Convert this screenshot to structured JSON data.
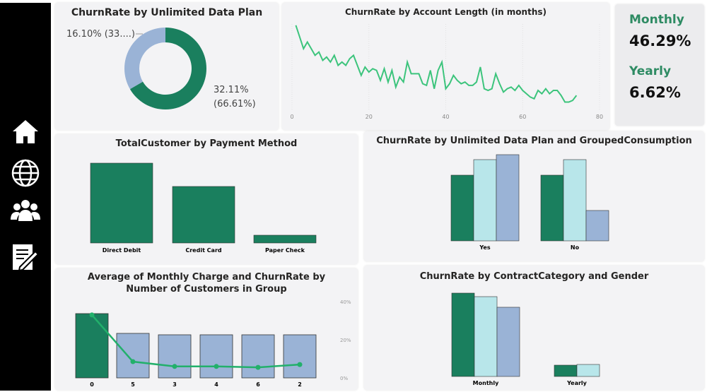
{
  "colors": {
    "green": "#1a7f5e",
    "line": "#3cc47c",
    "cyan": "#b8e6ea",
    "blue": "#9ab3d6"
  },
  "nav": [
    {
      "icon": "home-icon"
    },
    {
      "icon": "globe-icon"
    },
    {
      "icon": "users-icon"
    },
    {
      "icon": "document-edit-icon"
    }
  ],
  "kpi": {
    "monthly_label": "Monthly",
    "monthly_value": "46.29%",
    "yearly_label": "Yearly",
    "yearly_value": "6.62%"
  },
  "chart_data": [
    {
      "type": "pie",
      "title": "ChurnRate by Unlimited Data Plan",
      "slices": [
        {
          "value": 66.61,
          "label": "32.11%",
          "sublabel": "(66.61%)",
          "color": "#1a7f5e"
        },
        {
          "value": 33.39,
          "label": "16.10% (33....)",
          "color": "#9ab3d6"
        }
      ]
    },
    {
      "type": "line",
      "title": "ChurnRate by Account Length (in months)",
      "xlim": [
        0,
        80
      ],
      "xticks": [
        "0",
        "20",
        "40",
        "60",
        "80"
      ],
      "grid": "vertical",
      "x": [
        1,
        2,
        3,
        4,
        5,
        6,
        7,
        8,
        9,
        10,
        11,
        12,
        13,
        14,
        15,
        16,
        17,
        18,
        19,
        20,
        21,
        22,
        23,
        24,
        25,
        26,
        27,
        28,
        29,
        30,
        31,
        32,
        33,
        34,
        35,
        36,
        37,
        38,
        39,
        40,
        41,
        42,
        43,
        44,
        45,
        46,
        47,
        48,
        49,
        50,
        51,
        52,
        53,
        54,
        55,
        56,
        57,
        58,
        59,
        60,
        61,
        62,
        63,
        64,
        65,
        66,
        67,
        68,
        69,
        70,
        71,
        72,
        73,
        74
      ],
      "values": [
        50,
        43,
        36,
        40,
        36,
        32,
        34,
        29,
        31,
        28,
        32,
        26,
        28,
        26,
        30,
        32,
        26,
        20,
        25,
        22,
        24,
        23,
        17,
        24,
        16,
        23,
        13,
        19,
        16,
        28,
        21,
        21,
        21,
        15,
        14,
        23,
        12,
        23,
        28,
        12,
        15,
        20,
        17,
        15,
        16,
        14,
        14,
        16,
        25,
        12,
        11,
        12,
        21,
        15,
        10,
        12,
        13,
        11,
        14,
        11,
        9,
        7,
        6,
        11,
        9,
        12,
        9,
        11,
        11,
        8,
        4,
        4,
        5,
        8
      ]
    },
    {
      "type": "bar",
      "title": "TotalCustomer by Payment Method",
      "categories": [
        "Direct Debit",
        "Credit Card",
        "Paper Check"
      ],
      "values": [
        113,
        80,
        11
      ]
    },
    {
      "type": "bar",
      "title": "ChurnRate by Unlimited Data Plan and GroupedConsumption",
      "categories": [
        "Yes",
        "No"
      ],
      "series": [
        {
          "values": [
            93,
            93
          ],
          "color": "#1a7f5e"
        },
        {
          "values": [
            115,
            115
          ],
          "color": "#b8e6ea"
        },
        {
          "values": [
            122,
            43
          ],
          "color": "#9ab3d6"
        }
      ]
    },
    {
      "type": "bar",
      "title": "Average of Monthly Charge and ChurnRate by Number of Customers in Group",
      "categories": [
        "0",
        "5",
        "3",
        "4",
        "6",
        "2"
      ],
      "bar_values": [
        91,
        63,
        61,
        61,
        61,
        61
      ],
      "line_values": [
        33,
        8.5,
        6,
        6,
        5.5,
        7
      ],
      "y2lim": [
        0,
        40
      ],
      "y2ticks": [
        "0%",
        "20%",
        "40%"
      ]
    },
    {
      "type": "bar",
      "title": "ChurnRate by ContractCategory and Gender",
      "categories": [
        "Monthly",
        "Yearly"
      ],
      "series": [
        {
          "values": [
            118,
            16
          ],
          "color": "#1a7f5e"
        },
        {
          "values": [
            113,
            17
          ],
          "color": "#b8e6ea"
        },
        {
          "values": [
            98,
            null
          ],
          "color": "#9ab3d6"
        }
      ]
    }
  ]
}
